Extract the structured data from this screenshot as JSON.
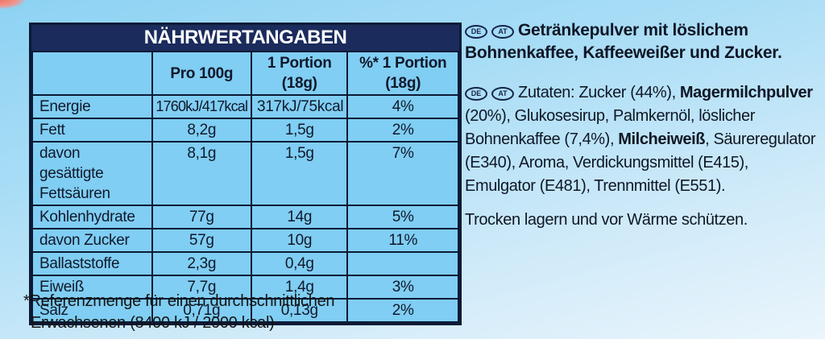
{
  "table": {
    "title": "NÄHRWERTANGABEN",
    "columns": [
      "",
      "Pro 100g",
      "1 Portion (18g)",
      "%* 1 Portion (18g)"
    ],
    "rows": [
      {
        "label": "Energie",
        "per100": "1760kJ/417kcal",
        "portion": "317kJ/75kcal",
        "pct": "4%"
      },
      {
        "label": "Fett",
        "per100": "8,2g",
        "portion": "1,5g",
        "pct": "2%"
      },
      {
        "label": "davon gesättigte Fettsäuren",
        "per100": "8,1g",
        "portion": "1,5g",
        "pct": "7%"
      },
      {
        "label": "Kohlenhydrate",
        "per100": "77g",
        "portion": "14g",
        "pct": "5%"
      },
      {
        "label": "davon Zucker",
        "per100": "57g",
        "portion": "10g",
        "pct": "11%"
      },
      {
        "label": "Ballaststoffe",
        "per100": "2,3g",
        "portion": "0,4g",
        "pct": ""
      },
      {
        "label": "Eiweiß",
        "per100": "7,7g",
        "portion": "1,4g",
        "pct": "3%"
      },
      {
        "label": "Salz",
        "per100": "0,71g",
        "portion": "0,13g",
        "pct": "2%"
      }
    ],
    "footnote_line1": "*Referenzmenge für einen durchschnittlichen",
    "footnote_line2": "Erwachsenen (8400 kJ / 2000 kcal)"
  },
  "info": {
    "badge_de": "DE",
    "badge_at": "AT",
    "description_line1": "Getränkepulver mit löslichem",
    "description_line2": "Bohnenkaffee, Kaffeeweißer und Zucker.",
    "ingredients": [
      {
        "text": "Zutaten: Zucker (44%), ",
        "bold": false
      },
      {
        "text": "Magermilchpulver",
        "bold": true
      },
      {
        "text": " (20%), Glukosesirup, Palmkernöl, löslicher Bohnenkaffee (7,4%), ",
        "bold": false
      },
      {
        "text": "Milcheiweiß",
        "bold": true
      },
      {
        "text": ", Säureregulator (E340), Aroma, Verdickungsmittel (E415), Emulgator (E481), Trennmittel (E551).",
        "bold": false
      }
    ],
    "storage": "Trocken lagern und vor Wärme schützen."
  },
  "colors": {
    "header_navy": "#1a2b5c",
    "cell_blue": "#80cef3",
    "border_dark": "#0c1a36",
    "background_top": "#8dd2f3",
    "background_bottom": "#eaf5fc",
    "corner_red": "#ef7466"
  }
}
